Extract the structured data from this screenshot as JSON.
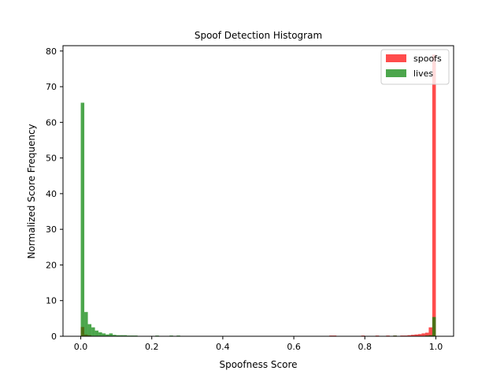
{
  "chart_data": {
    "type": "bar",
    "title": "Spoof Detection Histogram",
    "xlabel": "Spoofness Score",
    "ylabel": "Normalized Score Frequency",
    "xlim": [
      -0.05,
      1.05
    ],
    "ylim": [
      0,
      81.5
    ],
    "xticks": [
      0.0,
      0.2,
      0.4,
      0.6,
      0.8,
      1.0
    ],
    "xtick_labels": [
      "0.0",
      "0.2",
      "0.4",
      "0.6",
      "0.8",
      "1.0"
    ],
    "yticks": [
      0,
      10,
      20,
      30,
      40,
      50,
      60,
      70,
      80
    ],
    "ytick_labels": [
      "0",
      "10",
      "20",
      "30",
      "40",
      "50",
      "60",
      "70",
      "80"
    ],
    "bin_width": 0.01,
    "alpha": 0.7,
    "grid": false,
    "legend_position": "top-right",
    "series": [
      {
        "name": "spoofs",
        "color": "#ff0000",
        "bins": [
          [
            0.0,
            2.6
          ],
          [
            0.01,
            0.5
          ],
          [
            0.02,
            0.3
          ],
          [
            0.05,
            0.1
          ],
          [
            0.12,
            0.1
          ],
          [
            0.22,
            0.1
          ],
          [
            0.38,
            0.1
          ],
          [
            0.44,
            0.1
          ],
          [
            0.58,
            0.1
          ],
          [
            0.62,
            0.1
          ],
          [
            0.66,
            0.1
          ],
          [
            0.7,
            0.2
          ],
          [
            0.71,
            0.2
          ],
          [
            0.74,
            0.1
          ],
          [
            0.75,
            0.1
          ],
          [
            0.77,
            0.1
          ],
          [
            0.78,
            0.1
          ],
          [
            0.79,
            0.2
          ],
          [
            0.8,
            0.1
          ],
          [
            0.81,
            0.1
          ],
          [
            0.82,
            0.1
          ],
          [
            0.83,
            0.2
          ],
          [
            0.84,
            0.1
          ],
          [
            0.85,
            0.1
          ],
          [
            0.86,
            0.2
          ],
          [
            0.87,
            0.1
          ],
          [
            0.88,
            0.2
          ],
          [
            0.89,
            0.1
          ],
          [
            0.9,
            0.2
          ],
          [
            0.91,
            0.2
          ],
          [
            0.92,
            0.3
          ],
          [
            0.93,
            0.4
          ],
          [
            0.94,
            0.5
          ],
          [
            0.95,
            0.6
          ],
          [
            0.96,
            0.8
          ],
          [
            0.97,
            1.0
          ],
          [
            0.98,
            2.5
          ],
          [
            0.99,
            79.0
          ]
        ]
      },
      {
        "name": "lives",
        "color": "#008000",
        "bins": [
          [
            0.0,
            65.5
          ],
          [
            0.01,
            6.8
          ],
          [
            0.02,
            3.4
          ],
          [
            0.03,
            2.5
          ],
          [
            0.04,
            1.6
          ],
          [
            0.05,
            1.1
          ],
          [
            0.06,
            0.8
          ],
          [
            0.07,
            0.5
          ],
          [
            0.08,
            0.8
          ],
          [
            0.09,
            0.4
          ],
          [
            0.1,
            0.3
          ],
          [
            0.11,
            0.3
          ],
          [
            0.12,
            0.3
          ],
          [
            0.13,
            0.2
          ],
          [
            0.14,
            0.2
          ],
          [
            0.15,
            0.2
          ],
          [
            0.16,
            0.1
          ],
          [
            0.17,
            0.1
          ],
          [
            0.18,
            0.1
          ],
          [
            0.19,
            0.1
          ],
          [
            0.2,
            0.1
          ],
          [
            0.21,
            0.2
          ],
          [
            0.22,
            0.1
          ],
          [
            0.24,
            0.1
          ],
          [
            0.25,
            0.2
          ],
          [
            0.26,
            0.1
          ],
          [
            0.27,
            0.2
          ],
          [
            0.28,
            0.1
          ],
          [
            0.3,
            0.1
          ],
          [
            0.33,
            0.1
          ],
          [
            0.36,
            0.1
          ],
          [
            0.4,
            0.1
          ],
          [
            0.48,
            0.1
          ],
          [
            0.55,
            0.1
          ],
          [
            0.68,
            0.1
          ],
          [
            0.72,
            0.1
          ],
          [
            0.85,
            0.1
          ],
          [
            0.88,
            0.2
          ],
          [
            0.92,
            0.1
          ],
          [
            0.95,
            0.1
          ],
          [
            0.97,
            0.2
          ],
          [
            0.98,
            0.3
          ],
          [
            0.99,
            5.4
          ]
        ]
      }
    ]
  }
}
